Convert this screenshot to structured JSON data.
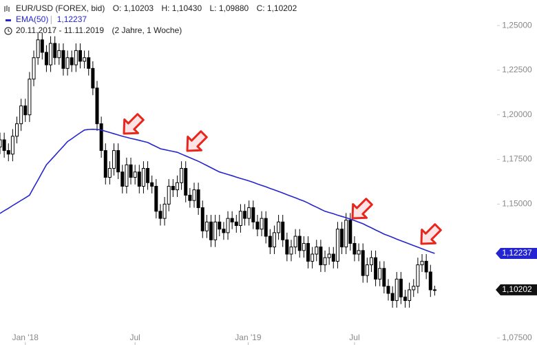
{
  "chart_data": {
    "type": "candlestick",
    "title": "EUR/USD (FOREX, bid)",
    "ohlc_legend": [
      "O: 1,10203",
      "H: 1,10430",
      "L: 1,09880",
      "C: 1,10202"
    ],
    "date_range": "20.11.2017 - 11.11.2019",
    "period": "(2 Jahre, 1 Woche)",
    "color": "#000000",
    "close_label": "1,10202",
    "open": [
      1.182,
      1.186,
      1.18,
      1.178,
      1.188,
      1.195,
      1.205,
      1.2,
      1.22,
      1.232,
      1.242,
      1.235,
      1.228,
      1.24,
      1.232,
      1.236,
      1.226,
      1.232,
      1.228,
      1.236,
      1.23,
      1.232,
      1.226,
      1.215,
      1.195,
      1.18,
      1.165,
      1.17,
      1.18,
      1.168,
      1.16,
      1.172,
      1.165,
      1.168,
      1.16,
      1.17,
      1.162,
      1.16,
      1.146,
      1.142,
      1.15,
      1.16,
      1.158,
      1.162,
      1.17,
      1.155,
      1.152,
      1.158,
      1.148,
      1.135,
      1.14,
      1.13,
      1.14,
      1.136,
      1.134,
      1.142,
      1.14,
      1.138,
      1.146,
      1.142,
      1.148,
      1.14,
      1.136,
      1.142,
      1.132,
      1.126,
      1.134,
      1.14,
      1.13,
      1.122,
      1.126,
      1.132,
      1.124,
      1.128,
      1.118,
      1.122,
      1.126,
      1.116,
      1.12,
      1.122,
      1.118,
      1.136,
      1.126,
      1.141,
      1.128,
      1.122,
      1.124,
      1.11,
      1.116,
      1.12,
      1.108,
      1.114,
      1.104,
      1.1,
      1.096,
      1.108,
      1.098,
      1.096,
      1.102,
      1.104,
      1.116,
      1.118,
      1.112,
      1.10203
    ],
    "high": [
      1.19,
      1.19,
      1.184,
      1.192,
      1.199,
      1.209,
      1.209,
      1.224,
      1.236,
      1.246,
      1.246,
      1.239,
      1.244,
      1.244,
      1.24,
      1.24,
      1.236,
      1.236,
      1.24,
      1.24,
      1.236,
      1.236,
      1.23,
      1.219,
      1.199,
      1.184,
      1.174,
      1.184,
      1.184,
      1.172,
      1.176,
      1.176,
      1.172,
      1.172,
      1.174,
      1.174,
      1.166,
      1.164,
      1.15,
      1.154,
      1.164,
      1.164,
      1.166,
      1.174,
      1.174,
      1.159,
      1.162,
      1.162,
      1.152,
      1.144,
      1.144,
      1.144,
      1.144,
      1.14,
      1.146,
      1.146,
      1.144,
      1.15,
      1.15,
      1.152,
      1.152,
      1.144,
      1.146,
      1.146,
      1.136,
      1.138,
      1.144,
      1.144,
      1.134,
      1.13,
      1.136,
      1.136,
      1.132,
      1.132,
      1.126,
      1.13,
      1.13,
      1.124,
      1.126,
      1.126,
      1.14,
      1.14,
      1.145,
      1.145,
      1.132,
      1.128,
      1.128,
      1.12,
      1.124,
      1.124,
      1.118,
      1.118,
      1.108,
      1.104,
      1.112,
      1.112,
      1.102,
      1.106,
      1.108,
      1.12,
      1.122,
      1.122,
      1.116,
      1.1043
    ],
    "low": [
      1.178,
      1.176,
      1.174,
      1.174,
      1.184,
      1.191,
      1.196,
      1.196,
      1.216,
      1.228,
      1.231,
      1.224,
      1.224,
      1.228,
      1.228,
      1.222,
      1.222,
      1.224,
      1.224,
      1.226,
      1.226,
      1.222,
      1.211,
      1.191,
      1.176,
      1.161,
      1.161,
      1.166,
      1.164,
      1.156,
      1.156,
      1.161,
      1.161,
      1.156,
      1.156,
      1.158,
      1.156,
      1.142,
      1.138,
      1.138,
      1.146,
      1.154,
      1.154,
      1.158,
      1.151,
      1.148,
      1.148,
      1.144,
      1.131,
      1.131,
      1.126,
      1.126,
      1.132,
      1.13,
      1.13,
      1.136,
      1.134,
      1.134,
      1.138,
      1.138,
      1.136,
      1.132,
      1.132,
      1.128,
      1.122,
      1.122,
      1.13,
      1.126,
      1.118,
      1.118,
      1.122,
      1.12,
      1.12,
      1.114,
      1.114,
      1.118,
      1.112,
      1.112,
      1.116,
      1.114,
      1.114,
      1.122,
      1.122,
      1.124,
      1.118,
      1.118,
      1.106,
      1.106,
      1.112,
      1.104,
      1.104,
      1.1,
      1.096,
      1.092,
      1.092,
      1.094,
      1.092,
      1.092,
      1.098,
      1.1,
      1.112,
      1.108,
      1.098,
      1.0988
    ],
    "close": [
      1.186,
      1.18,
      1.178,
      1.188,
      1.195,
      1.205,
      1.2,
      1.22,
      1.232,
      1.242,
      1.235,
      1.228,
      1.24,
      1.232,
      1.236,
      1.226,
      1.232,
      1.228,
      1.236,
      1.23,
      1.232,
      1.226,
      1.215,
      1.195,
      1.18,
      1.165,
      1.17,
      1.18,
      1.168,
      1.16,
      1.172,
      1.165,
      1.168,
      1.16,
      1.17,
      1.162,
      1.16,
      1.146,
      1.142,
      1.15,
      1.16,
      1.158,
      1.162,
      1.17,
      1.155,
      1.152,
      1.158,
      1.148,
      1.135,
      1.14,
      1.13,
      1.14,
      1.136,
      1.134,
      1.142,
      1.14,
      1.138,
      1.146,
      1.142,
      1.148,
      1.14,
      1.136,
      1.142,
      1.132,
      1.126,
      1.134,
      1.14,
      1.13,
      1.122,
      1.126,
      1.132,
      1.124,
      1.128,
      1.118,
      1.122,
      1.126,
      1.116,
      1.12,
      1.122,
      1.118,
      1.136,
      1.126,
      1.141,
      1.128,
      1.122,
      1.124,
      1.11,
      1.116,
      1.12,
      1.108,
      1.114,
      1.104,
      1.1,
      1.096,
      1.108,
      1.098,
      1.096,
      1.102,
      1.104,
      1.116,
      1.118,
      1.112,
      1.102,
      1.10202
    ],
    "series": [
      {
        "name": "EMA(50)",
        "color": "#2424d0",
        "last_label": "1,12237",
        "values": [
          1.1448,
          1.1463,
          1.1477,
          1.1492,
          1.1506,
          1.1521,
          1.1535,
          1.155,
          1.1593,
          1.1635,
          1.1678,
          1.172,
          1.1746,
          1.1772,
          1.1798,
          1.1824,
          1.185,
          1.1866,
          1.1883,
          1.1899,
          1.1915,
          1.1918,
          1.1919,
          1.1918,
          1.1915,
          1.1908,
          1.1901,
          1.1894,
          1.1887,
          1.188,
          1.1874,
          1.1868,
          1.1863,
          1.1857,
          1.1851,
          1.1845,
          1.1833,
          1.1822,
          1.181,
          1.1805,
          1.18,
          1.1795,
          1.179,
          1.178,
          1.177,
          1.176,
          1.175,
          1.174,
          1.1728,
          1.1716,
          1.1704,
          1.1692,
          1.168,
          1.1673,
          1.1666,
          1.1659,
          1.1651,
          1.1644,
          1.1637,
          1.163,
          1.1622,
          1.1613,
          1.1605,
          1.1597,
          1.1588,
          1.158,
          1.1571,
          1.1562,
          1.1553,
          1.1544,
          1.1535,
          1.1526,
          1.1517,
          1.1506,
          1.1494,
          1.1483,
          1.1471,
          1.146,
          1.1453,
          1.1446,
          1.1438,
          1.1431,
          1.1424,
          1.1416,
          1.1408,
          1.1399,
          1.139,
          1.1378,
          1.1367,
          1.1355,
          1.1344,
          1.1332,
          1.1323,
          1.1314,
          1.1304,
          1.1295,
          1.1286,
          1.1277,
          1.1268,
          1.1259,
          1.125,
          1.1241,
          1.1232,
          1.12237
        ]
      }
    ],
    "ylim": [
      1.0711,
      1.2643
    ],
    "yticks": [
      {
        "value": 1.075,
        "label": "1,07500"
      },
      {
        "value": 1.15,
        "label": "1,15000"
      },
      {
        "value": 1.175,
        "label": "1,17500"
      },
      {
        "value": 1.2,
        "label": "1,20000"
      },
      {
        "value": 1.225,
        "label": "1,22500"
      },
      {
        "value": 1.25,
        "label": "1,25000"
      }
    ],
    "xlim": [
      0,
      117.45
    ],
    "xticks": [
      {
        "value": 6,
        "label": "Jan '18"
      },
      {
        "value": 32,
        "label": "Jul"
      },
      {
        "value": 58.8,
        "label": "Jan '19"
      },
      {
        "value": 84,
        "label": "Jul"
      }
    ]
  }
}
